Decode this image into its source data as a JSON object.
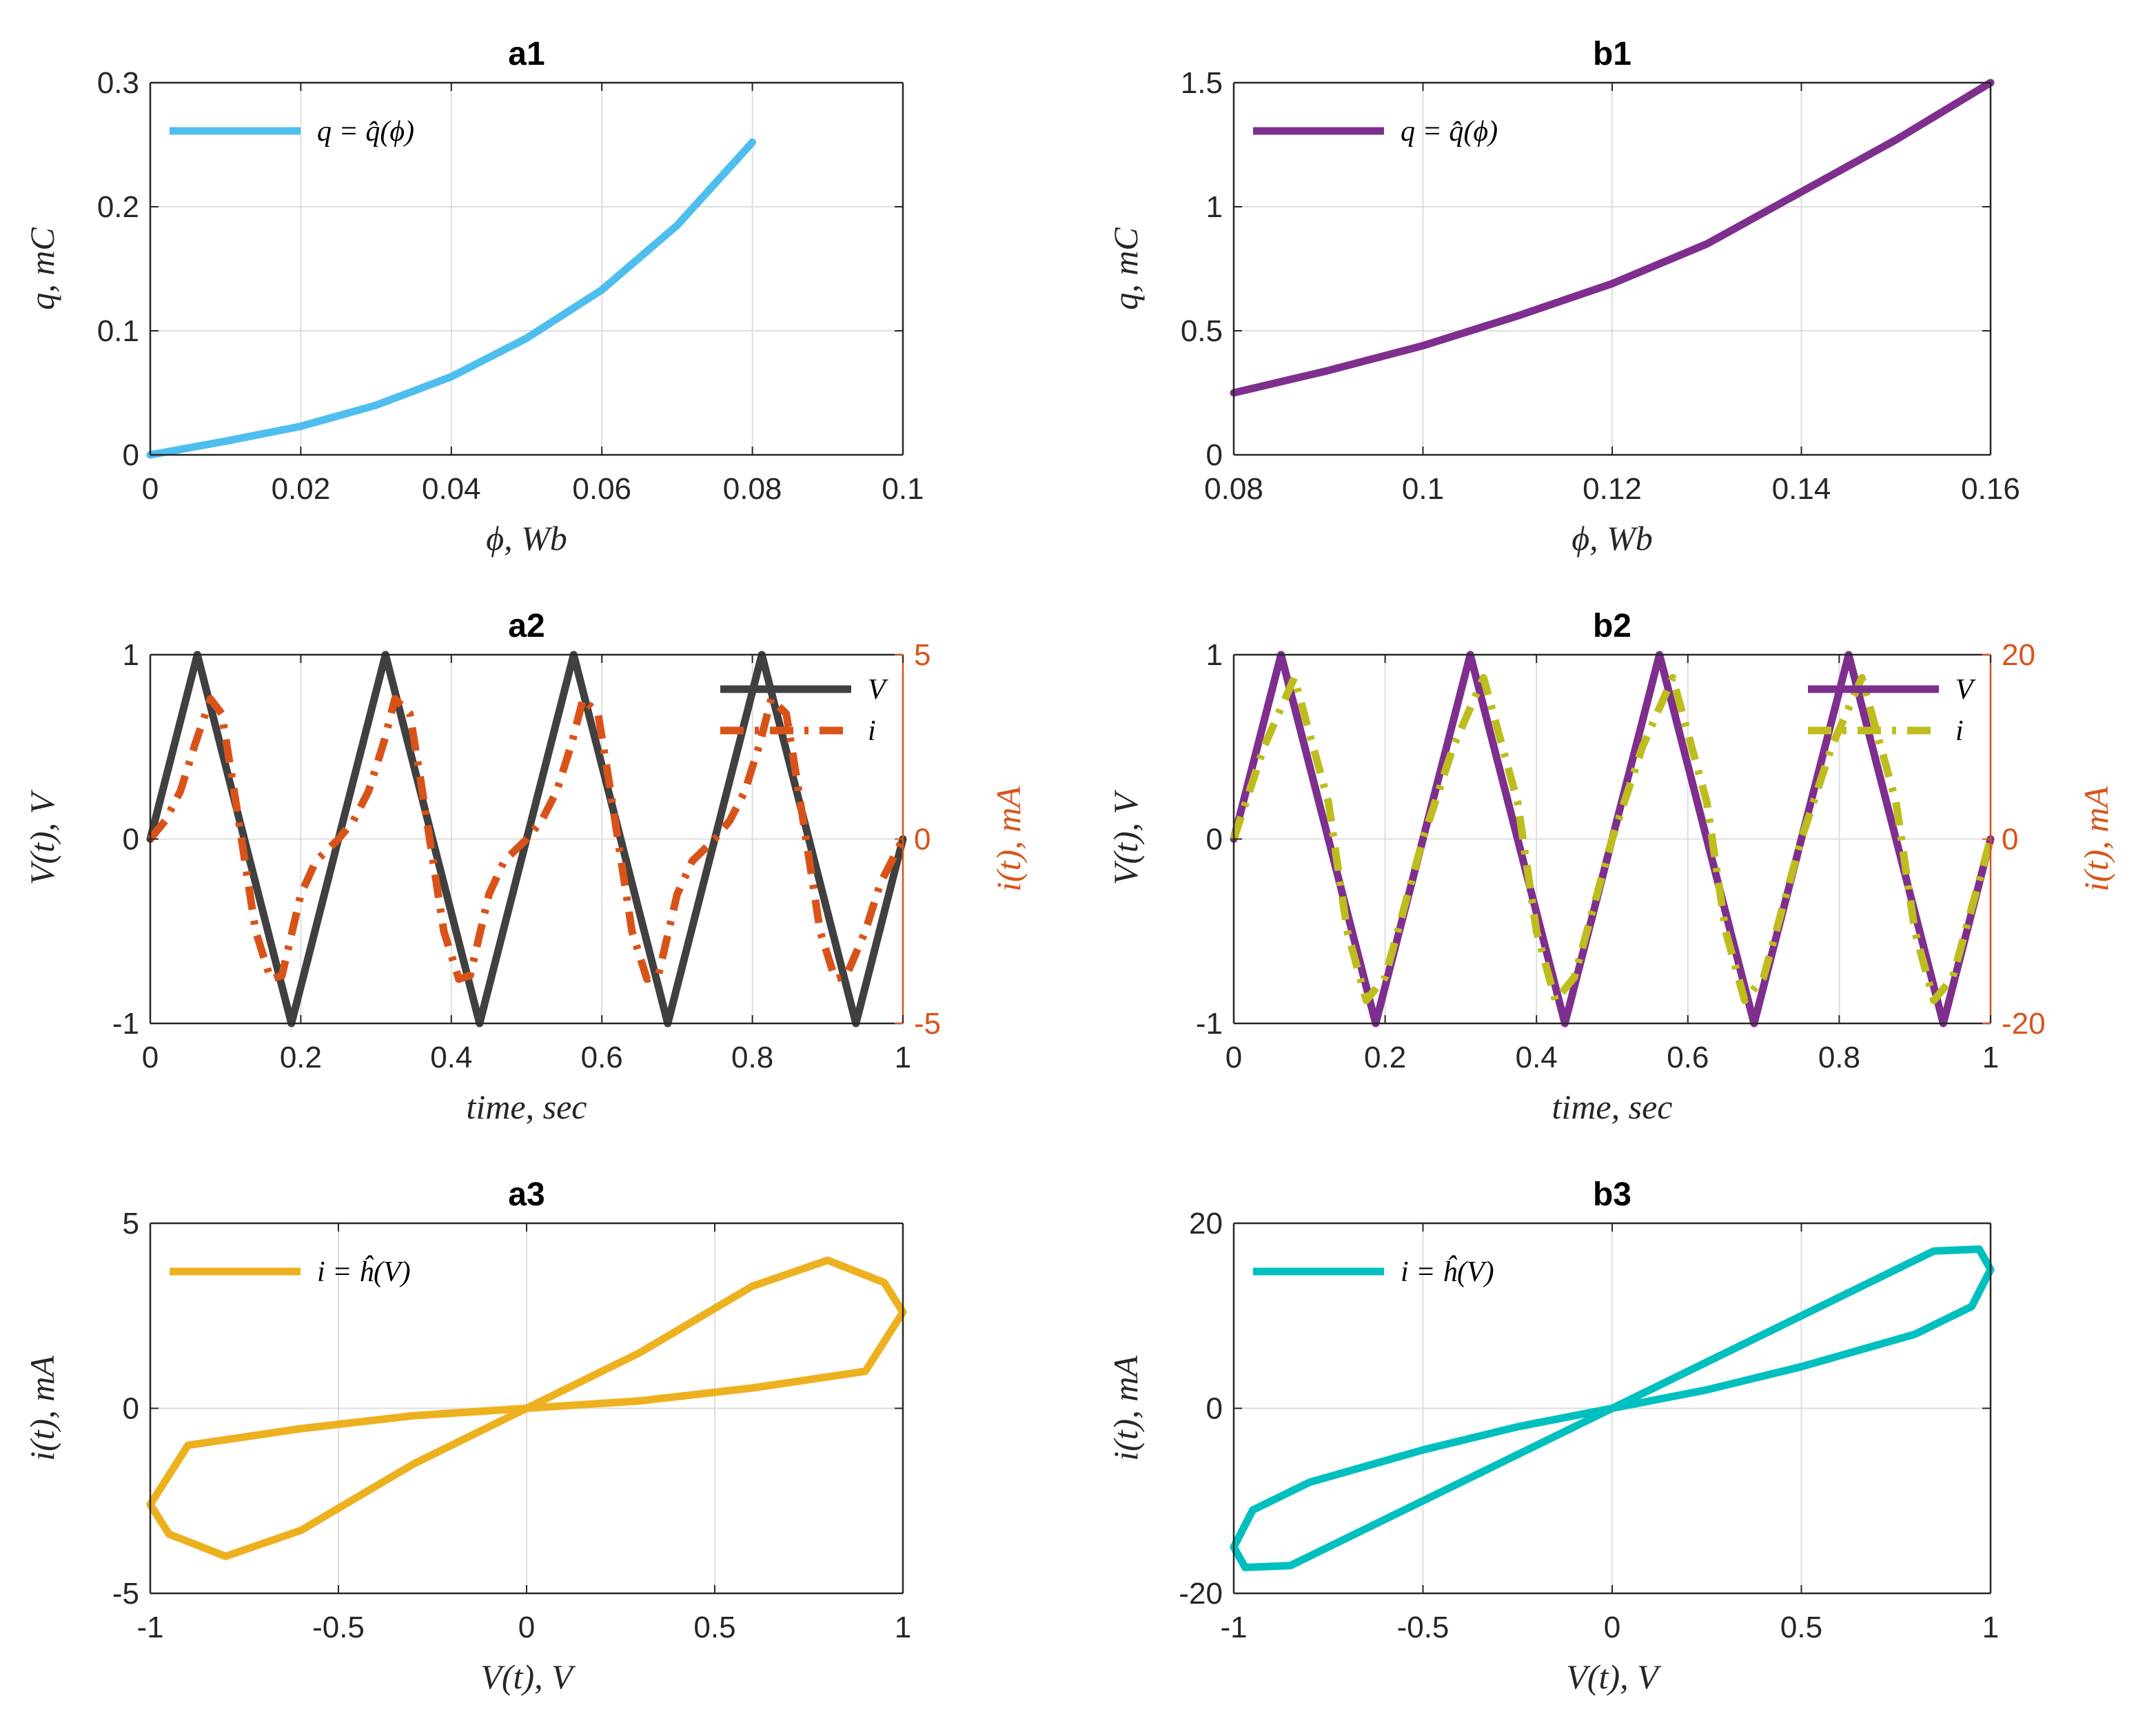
{
  "chart_data": [
    {
      "id": "a1",
      "type": "line",
      "title": "a1",
      "xlabel": "ϕ,  Wb",
      "ylabel": "q,  mC",
      "xlim": [
        0,
        0.1
      ],
      "ylim": [
        0,
        0.3
      ],
      "xticks": [
        0,
        0.02,
        0.04,
        0.06,
        0.08,
        0.1
      ],
      "xtick_labels": [
        "0",
        "0.02",
        "0.04",
        "0.06",
        "0.08",
        "0.1"
      ],
      "yticks": [
        0,
        0.1,
        0.2,
        0.3
      ],
      "ytick_labels": [
        "0",
        "0.1",
        "0.2",
        "0.3"
      ],
      "grid": true,
      "legend_position": "top-left",
      "series": [
        {
          "name": "q = q̂(ϕ)",
          "color": "#4DBEEE",
          "style": "solid",
          "x": [
            0,
            0.01,
            0.02,
            0.03,
            0.04,
            0.05,
            0.06,
            0.07,
            0.08
          ],
          "y": [
            0,
            0.011,
            0.023,
            0.04,
            0.063,
            0.094,
            0.133,
            0.185,
            0.252
          ]
        }
      ]
    },
    {
      "id": "b1",
      "type": "line",
      "title": "b1",
      "xlabel": "ϕ,  Wb",
      "ylabel": "q,  mC",
      "xlim": [
        0.08,
        0.16
      ],
      "ylim": [
        0,
        1.5
      ],
      "xticks": [
        0.08,
        0.1,
        0.12,
        0.14,
        0.16
      ],
      "xtick_labels": [
        "0.08",
        "0.1",
        "0.12",
        "0.14",
        "0.16"
      ],
      "yticks": [
        0,
        0.5,
        1,
        1.5
      ],
      "ytick_labels": [
        "0",
        "0.5",
        "1",
        "1.5"
      ],
      "grid": true,
      "legend_position": "top-left",
      "series": [
        {
          "name": "q = q̂(ϕ)",
          "color": "#7E2F8E",
          "style": "solid",
          "x": [
            0.08,
            0.09,
            0.1,
            0.11,
            0.12,
            0.13,
            0.14,
            0.15,
            0.16
          ],
          "y": [
            0.25,
            0.34,
            0.44,
            0.56,
            0.69,
            0.85,
            1.06,
            1.27,
            1.5
          ]
        }
      ]
    },
    {
      "id": "a2",
      "type": "line",
      "title": "a2",
      "xlabel": "time,  sec",
      "ylabel": "V(t),  V",
      "y2label": "i(t),  mA",
      "xlim": [
        0,
        1
      ],
      "ylim": [
        -1,
        1
      ],
      "y2lim": [
        -5,
        5
      ],
      "xticks": [
        0,
        0.2,
        0.4,
        0.6,
        0.8,
        1
      ],
      "xtick_labels": [
        "0",
        "0.2",
        "0.4",
        "0.6",
        "0.8",
        "1"
      ],
      "yticks": [
        -1,
        0,
        1
      ],
      "ytick_labels": [
        "-1",
        "0",
        "1"
      ],
      "y2ticks": [
        -5,
        0,
        5
      ],
      "y2tick_labels": [
        "-5",
        "0",
        "5"
      ],
      "y2_color": "#D95319",
      "grid": true,
      "legend_position": "top-right",
      "series": [
        {
          "name": "V",
          "color": "#404040",
          "style": "solid",
          "axis": "left",
          "x": [
            0,
            0.0625,
            0.125,
            0.1875,
            0.25,
            0.3125,
            0.375,
            0.4375,
            0.5,
            0.5625,
            0.625,
            0.6875,
            0.75,
            0.8125,
            0.875,
            0.9375,
            1
          ],
          "y": [
            0,
            1,
            0,
            -1,
            0,
            1,
            0,
            -1,
            0,
            1,
            0,
            -1,
            0,
            1,
            0,
            -1,
            0
          ]
        },
        {
          "name": "i",
          "color": "#D95319",
          "style": "dashdot",
          "axis": "right",
          "x": [
            0,
            0.02,
            0.04,
            0.06,
            0.08,
            0.095,
            0.11,
            0.125,
            0.14,
            0.16,
            0.175,
            0.2,
            0.22,
            0.25,
            0.27,
            0.29,
            0.31,
            0.325,
            0.345,
            0.36,
            0.375,
            0.39,
            0.41,
            0.425,
            0.45,
            0.47,
            0.5,
            0.52,
            0.54,
            0.56,
            0.575,
            0.595,
            0.61,
            0.625,
            0.64,
            0.66,
            0.675,
            0.7,
            0.72,
            0.75,
            0.77,
            0.79,
            0.81,
            0.825,
            0.845,
            0.86,
            0.875,
            0.89,
            0.91,
            0.925,
            0.95,
            0.97,
            1
          ],
          "y": [
            0,
            0.5,
            1.3,
            2.6,
            3.8,
            3.4,
            1.5,
            -0.5,
            -2.5,
            -3.8,
            -3.7,
            -1.5,
            -0.6,
            0,
            0.5,
            1.3,
            2.6,
            3.8,
            3.4,
            1.5,
            -0.5,
            -2.5,
            -3.8,
            -3.7,
            -1.5,
            -0.6,
            0,
            0.5,
            1.3,
            2.6,
            3.8,
            3.4,
            1.5,
            -0.5,
            -2.5,
            -3.8,
            -3.7,
            -1.5,
            -0.6,
            0,
            0.5,
            1.3,
            2.6,
            3.8,
            3.4,
            1.5,
            -0.5,
            -2.5,
            -3.8,
            -3.7,
            -2.5,
            -1.2,
            0
          ]
        }
      ]
    },
    {
      "id": "b2",
      "type": "line",
      "title": "b2",
      "xlabel": "time,  sec",
      "ylabel": "V(t),  V",
      "y2label": "i(t),  mA",
      "xlim": [
        0,
        1
      ],
      "ylim": [
        -1,
        1
      ],
      "y2lim": [
        -20,
        20
      ],
      "xticks": [
        0,
        0.2,
        0.4,
        0.6,
        0.8,
        1
      ],
      "xtick_labels": [
        "0",
        "0.2",
        "0.4",
        "0.6",
        "0.8",
        "1"
      ],
      "yticks": [
        -1,
        0,
        1
      ],
      "ytick_labels": [
        "-1",
        "0",
        "1"
      ],
      "y2ticks": [
        -20,
        0,
        20
      ],
      "y2tick_labels": [
        "-20",
        "0",
        "20"
      ],
      "y2_color": "#D95319",
      "grid": true,
      "legend_position": "top-right",
      "series": [
        {
          "name": "V",
          "color": "#7E2F8E",
          "style": "solid",
          "axis": "left",
          "x": [
            0,
            0.0625,
            0.125,
            0.1875,
            0.25,
            0.3125,
            0.375,
            0.4375,
            0.5,
            0.5625,
            0.625,
            0.6875,
            0.75,
            0.8125,
            0.875,
            0.9375,
            1
          ],
          "y": [
            0,
            1,
            0,
            -1,
            0,
            1,
            0,
            -1,
            0,
            1,
            0,
            -1,
            0,
            1,
            0,
            -1,
            0
          ]
        },
        {
          "name": "i",
          "color": "#BDBD1E",
          "style": "dashdot",
          "axis": "right",
          "x": [
            0,
            0.04,
            0.08,
            0.125,
            0.15,
            0.175,
            0.2,
            0.25,
            0.29,
            0.33,
            0.375,
            0.4,
            0.425,
            0.45,
            0.5,
            0.54,
            0.58,
            0.625,
            0.65,
            0.675,
            0.7,
            0.75,
            0.79,
            0.83,
            0.875,
            0.9,
            0.925,
            0.95,
            1
          ],
          "y": [
            0,
            10,
            17.5,
            4,
            -10,
            -17.5,
            -15,
            0,
            10,
            17.5,
            4,
            -10,
            -17.5,
            -15,
            0,
            10,
            17.5,
            4,
            -10,
            -17.5,
            -15,
            0,
            10,
            17.5,
            4,
            -10,
            -17.5,
            -15,
            0
          ]
        }
      ]
    },
    {
      "id": "a3",
      "type": "line",
      "title": "a3",
      "xlabel": "V(t),  V",
      "ylabel": "i(t),  mA",
      "xlim": [
        -1,
        1
      ],
      "ylim": [
        -5,
        5
      ],
      "xticks": [
        -1,
        -0.5,
        0,
        0.5,
        1
      ],
      "xtick_labels": [
        "-1",
        "-0.5",
        "0",
        "0.5",
        "1"
      ],
      "yticks": [
        -5,
        0,
        5
      ],
      "ytick_labels": [
        "-5",
        "0",
        "5"
      ],
      "grid": true,
      "legend_position": "top-left",
      "series": [
        {
          "name": "i = ĥ(V)",
          "color": "#EDB120",
          "style": "solid",
          "x": [
            0,
            0.3,
            0.6,
            0.8,
            0.95,
            1,
            0.9,
            0.6,
            0.3,
            0,
            -0.3,
            -0.6,
            -0.8,
            -0.95,
            -1,
            -0.9,
            -0.6,
            -0.3,
            0
          ],
          "y": [
            0,
            1.5,
            3.3,
            4.0,
            3.4,
            2.6,
            1.0,
            0.55,
            0.2,
            0,
            -1.5,
            -3.3,
            -4.0,
            -3.4,
            -2.6,
            -1.0,
            -0.55,
            -0.2,
            0
          ]
        }
      ]
    },
    {
      "id": "b3",
      "type": "line",
      "title": "b3",
      "xlabel": "V(t),  V",
      "ylabel": "i(t),  mA",
      "xlim": [
        -1,
        1
      ],
      "ylim": [
        -20,
        20
      ],
      "xticks": [
        -1,
        -0.5,
        0,
        0.5,
        1
      ],
      "xtick_labels": [
        "-1",
        "-0.5",
        "0",
        "0.5",
        "1"
      ],
      "yticks": [
        -20,
        0,
        20
      ],
      "ytick_labels": [
        "-20",
        "0",
        "20"
      ],
      "grid": true,
      "legend_position": "top-left",
      "series": [
        {
          "name": "i = ĥ(V)",
          "color": "#00BFBF",
          "style": "solid",
          "x": [
            0,
            0.3,
            0.6,
            0.85,
            0.97,
            1,
            0.95,
            0.8,
            0.5,
            0.25,
            0,
            -0.3,
            -0.6,
            -0.85,
            -0.97,
            -1,
            -0.95,
            -0.8,
            -0.5,
            -0.25,
            0
          ],
          "y": [
            0,
            6,
            12,
            17,
            17.2,
            15,
            11,
            8,
            4.5,
            2,
            0,
            -6,
            -12,
            -17,
            -17.2,
            -15,
            -11,
            -8,
            -4.5,
            -2,
            0
          ]
        }
      ]
    }
  ]
}
